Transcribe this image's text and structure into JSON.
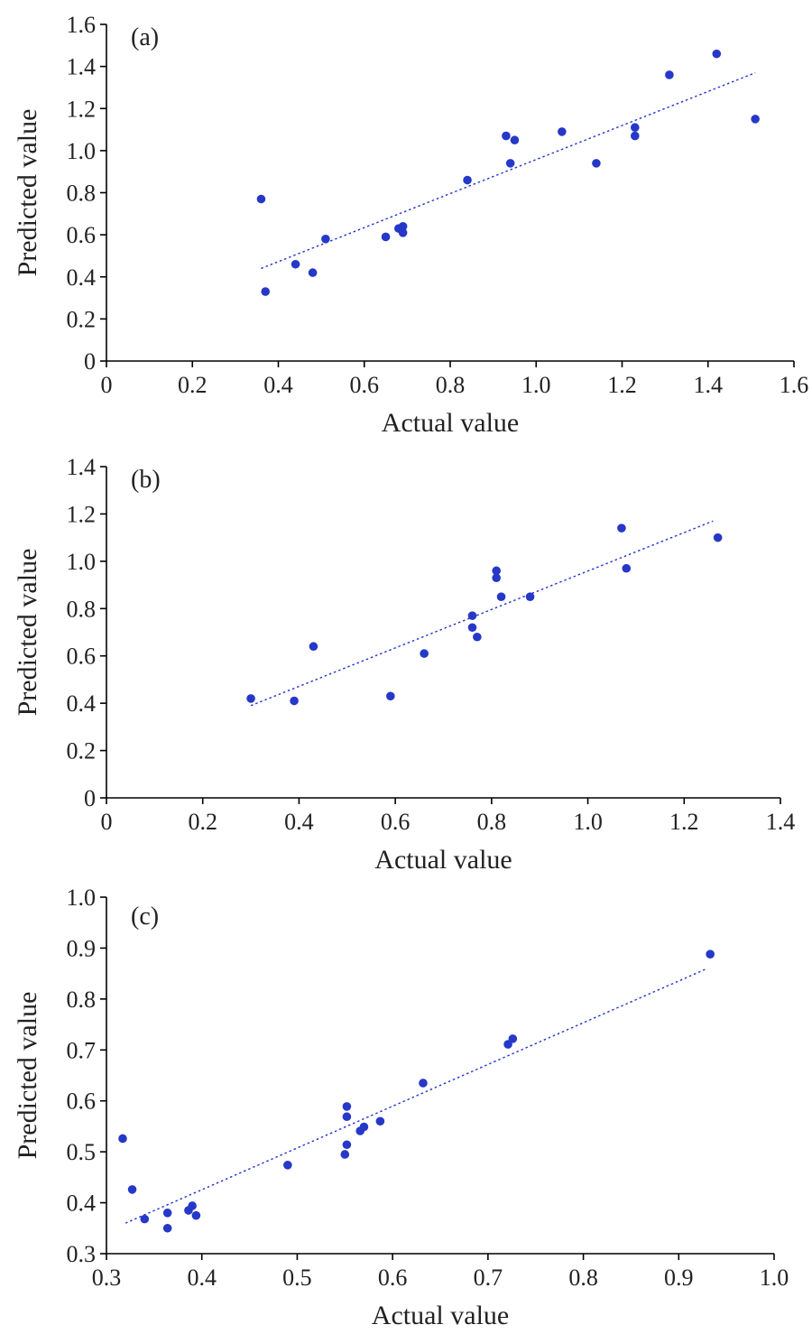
{
  "chart_data": [
    {
      "type": "scatter",
      "panel_label": "(a)",
      "xlabel": "Actual value",
      "ylabel": "Predicted value",
      "xlim": [
        0,
        1.6
      ],
      "ylim": [
        0,
        1.6
      ],
      "x_ticks": [
        "0",
        "0.2",
        "0.4",
        "0.6",
        "0.8",
        "1.0",
        "1.2",
        "1.4",
        "1.6"
      ],
      "y_ticks": [
        "0",
        "0.2",
        "0.4",
        "0.6",
        "0.8",
        "1.0",
        "1.2",
        "1.4",
        "1.6"
      ],
      "grid": false,
      "marker_color": "#2538c8",
      "trend_line_color": "#2233cc",
      "trend_line": [
        [
          0.36,
          0.44
        ],
        [
          1.51,
          1.37
        ]
      ],
      "points": [
        [
          0.36,
          0.77
        ],
        [
          0.37,
          0.33
        ],
        [
          0.44,
          0.46
        ],
        [
          0.48,
          0.42
        ],
        [
          0.51,
          0.58
        ],
        [
          0.65,
          0.59
        ],
        [
          0.68,
          0.63
        ],
        [
          0.69,
          0.64
        ],
        [
          0.69,
          0.61
        ],
        [
          0.84,
          0.86
        ],
        [
          0.93,
          1.07
        ],
        [
          0.94,
          0.94
        ],
        [
          0.95,
          1.05
        ],
        [
          1.06,
          1.09
        ],
        [
          1.14,
          0.94
        ],
        [
          1.23,
          1.11
        ],
        [
          1.23,
          1.07
        ],
        [
          1.31,
          1.36
        ],
        [
          1.42,
          1.46
        ],
        [
          1.51,
          1.15
        ]
      ]
    },
    {
      "type": "scatter",
      "panel_label": "(b)",
      "xlabel": "Actual value",
      "ylabel": "Predicted value",
      "xlim": [
        0,
        1.4
      ],
      "ylim": [
        0,
        1.4
      ],
      "x_ticks": [
        "0",
        "0.2",
        "0.4",
        "0.6",
        "0.8",
        "1.0",
        "1.2",
        "1.4"
      ],
      "y_ticks": [
        "0",
        "0.2",
        "0.4",
        "0.6",
        "0.8",
        "1.0",
        "1.2",
        "1.4"
      ],
      "grid": false,
      "marker_color": "#2538c8",
      "trend_line_color": "#2233cc",
      "trend_line": [
        [
          0.3,
          0.39
        ],
        [
          1.26,
          1.17
        ]
      ],
      "points": [
        [
          0.3,
          0.42
        ],
        [
          0.39,
          0.41
        ],
        [
          0.43,
          0.64
        ],
        [
          0.59,
          0.43
        ],
        [
          0.66,
          0.61
        ],
        [
          0.76,
          0.77
        ],
        [
          0.76,
          0.72
        ],
        [
          0.77,
          0.68
        ],
        [
          0.81,
          0.96
        ],
        [
          0.81,
          0.93
        ],
        [
          0.82,
          0.85
        ],
        [
          0.88,
          0.85
        ],
        [
          1.07,
          1.14
        ],
        [
          1.08,
          0.97
        ],
        [
          1.27,
          1.1
        ]
      ]
    },
    {
      "type": "scatter",
      "panel_label": "(c)",
      "xlabel": "Actual value",
      "ylabel": "Predicted value",
      "xlim": [
        0.3,
        1.0
      ],
      "ylim": [
        0.3,
        1.0
      ],
      "x_ticks": [
        "0.3",
        "0.4",
        "0.5",
        "0.6",
        "0.7",
        "0.8",
        "0.9",
        "1.0"
      ],
      "y_ticks": [
        "0.3",
        "0.4",
        "0.5",
        "0.6",
        "0.7",
        "0.8",
        "0.9",
        "1.0"
      ],
      "grid": false,
      "marker_color": "#2538c8",
      "trend_line_color": "#2233cc",
      "trend_line": [
        [
          0.32,
          0.36
        ],
        [
          0.93,
          0.86
        ]
      ],
      "points": [
        [
          0.317,
          0.526
        ],
        [
          0.327,
          0.426
        ],
        [
          0.34,
          0.368
        ],
        [
          0.364,
          0.38
        ],
        [
          0.364,
          0.35
        ],
        [
          0.386,
          0.385
        ],
        [
          0.39,
          0.394
        ],
        [
          0.394,
          0.375
        ],
        [
          0.49,
          0.474
        ],
        [
          0.55,
          0.495
        ],
        [
          0.552,
          0.514
        ],
        [
          0.552,
          0.569
        ],
        [
          0.552,
          0.589
        ],
        [
          0.566,
          0.541
        ],
        [
          0.57,
          0.549
        ],
        [
          0.587,
          0.56
        ],
        [
          0.632,
          0.635
        ],
        [
          0.721,
          0.711
        ],
        [
          0.726,
          0.722
        ],
        [
          0.933,
          0.888
        ]
      ]
    }
  ]
}
